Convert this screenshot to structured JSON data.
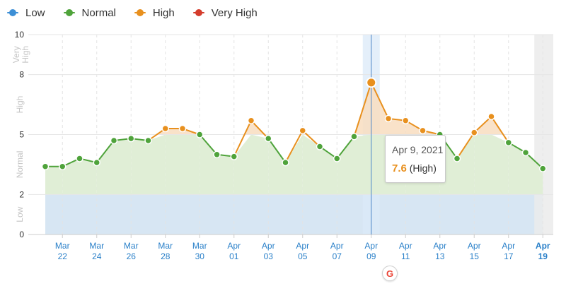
{
  "legend": [
    {
      "label": "Low",
      "color": "#3d8fd6"
    },
    {
      "label": "Normal",
      "color": "#4fa33b"
    },
    {
      "label": "High",
      "color": "#e8901e"
    },
    {
      "label": "Very High",
      "color": "#d43c2c"
    }
  ],
  "tooltip": {
    "date": "Apr 9, 2021",
    "value": "7.6",
    "level": "(High)"
  },
  "google_badge": "G",
  "chart_data": {
    "type": "area",
    "x": [
      "Mar 21",
      "Mar 22",
      "Mar 23",
      "Mar 24",
      "Mar 25",
      "Mar 26",
      "Mar 27",
      "Mar 28",
      "Mar 29",
      "Mar 30",
      "Mar 31",
      "Apr 01",
      "Apr 02",
      "Apr 03",
      "Apr 04",
      "Apr 05",
      "Apr 06",
      "Apr 07",
      "Apr 08",
      "Apr 09",
      "Apr 10",
      "Apr 11",
      "Apr 12",
      "Apr 13",
      "Apr 14",
      "Apr 15",
      "Apr 16",
      "Apr 17",
      "Apr 18",
      "Apr 19"
    ],
    "values": [
      3.4,
      3.4,
      3.8,
      3.6,
      4.7,
      4.8,
      4.7,
      5.3,
      5.3,
      5.0,
      4.0,
      3.9,
      5.7,
      4.8,
      3.6,
      5.2,
      4.4,
      3.8,
      4.9,
      7.6,
      5.8,
      5.7,
      5.2,
      5.0,
      3.8,
      5.1,
      5.9,
      4.6,
      4.1,
      3.3
    ],
    "ylim": [
      0,
      10
    ],
    "y_ticks": [
      "0",
      "2",
      "5",
      "8",
      "10"
    ],
    "bands": [
      {
        "label": "Low",
        "from": 0,
        "to": 2
      },
      {
        "label": "Normal",
        "from": 2,
        "to": 5
      },
      {
        "label": "High",
        "from": 5,
        "to": 8
      },
      {
        "label": "Very High",
        "from": 8,
        "to": 10
      }
    ],
    "x_tick_labels": [
      {
        "month": "Mar",
        "day": "22"
      },
      {
        "month": "Mar",
        "day": "24"
      },
      {
        "month": "Mar",
        "day": "26"
      },
      {
        "month": "Mar",
        "day": "28"
      },
      {
        "month": "Mar",
        "day": "30"
      },
      {
        "month": "Apr",
        "day": "01"
      },
      {
        "month": "Apr",
        "day": "03"
      },
      {
        "month": "Apr",
        "day": "05"
      },
      {
        "month": "Apr",
        "day": "07"
      },
      {
        "month": "Apr",
        "day": "09"
      },
      {
        "month": "Apr",
        "day": "11"
      },
      {
        "month": "Apr",
        "day": "13"
      },
      {
        "month": "Apr",
        "day": "15"
      },
      {
        "month": "Apr",
        "day": "17"
      },
      {
        "month": "Apr",
        "day": "19"
      }
    ],
    "highlighted_date": "Apr 09",
    "colors": {
      "low": "#3d8fd6",
      "normal": "#4fa33b",
      "high": "#e8901e",
      "very_high": "#d43c2c"
    }
  }
}
